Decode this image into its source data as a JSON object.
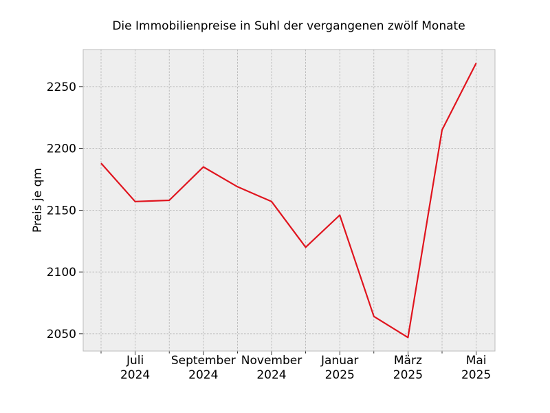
{
  "chart_data": {
    "type": "line",
    "title": "Die Immobilienpreise in Suhl der vergangenen zwölf Monate",
    "xlabel": "",
    "ylabel": "Preis je qm",
    "x": [
      "2024-06",
      "2024-07",
      "2024-08",
      "2024-09",
      "2024-10",
      "2024-11",
      "2024-12",
      "2025-01",
      "2025-02",
      "2025-03",
      "2025-04",
      "2025-05"
    ],
    "series": [
      {
        "values": [
          2188,
          2157,
          2158,
          2185,
          2169,
          2157,
          2120,
          2146,
          2064,
          2047,
          2215,
          2269
        ],
        "color": "#e0141e"
      }
    ],
    "x_tick_labels": [
      {
        "month": "Juli",
        "year": "2024"
      },
      {
        "month": "September",
        "year": "2024"
      },
      {
        "month": "November",
        "year": "2024"
      },
      {
        "month": "Januar",
        "year": "2025"
      },
      {
        "month": "März",
        "year": "2025"
      },
      {
        "month": "Mai",
        "year": "2025"
      }
    ],
    "y_ticks": [
      2050,
      2100,
      2150,
      2200,
      2250
    ],
    "ylim": [
      2036,
      2280
    ],
    "grid": true,
    "background_color": "#eeeeee",
    "grid_color": "#b0b0b0",
    "frame_color": "#bcbcbc"
  }
}
